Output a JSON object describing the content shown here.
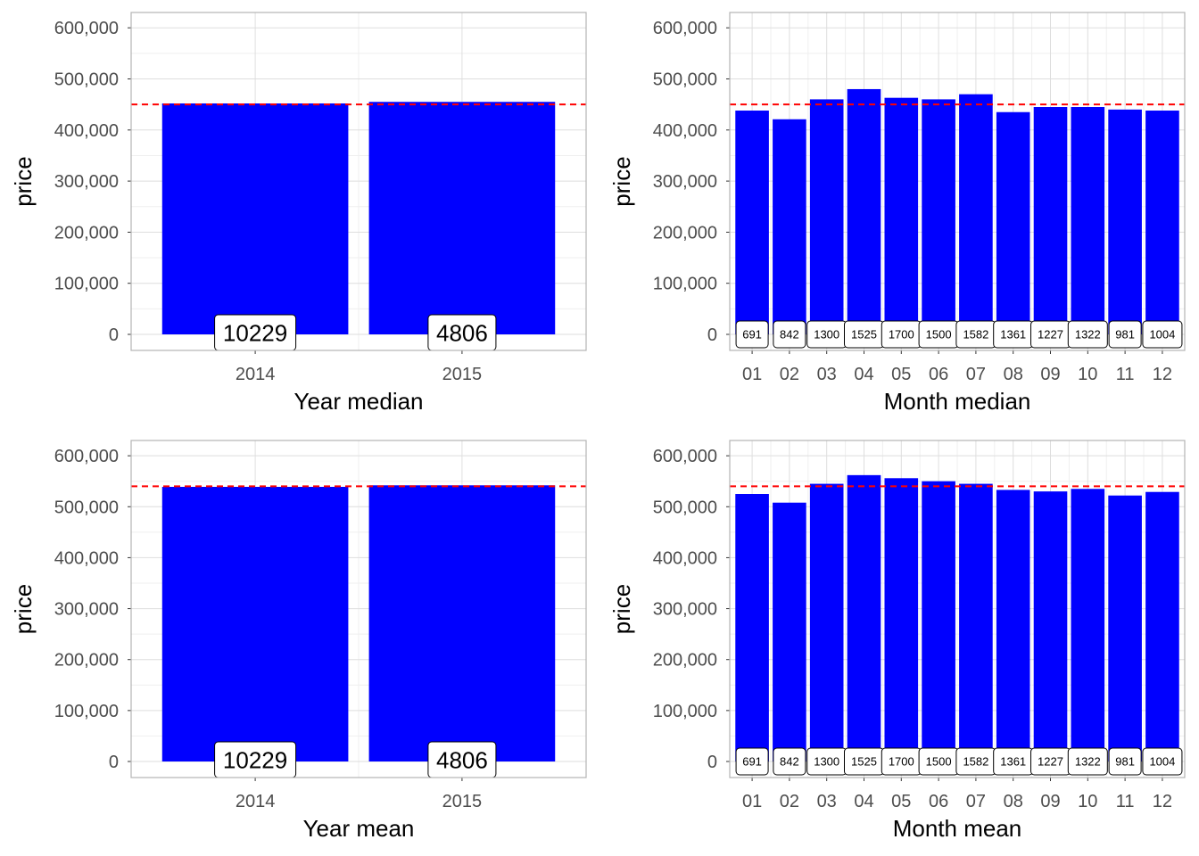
{
  "colors": {
    "bar": "#0000ff",
    "refline": "#ff0000",
    "grid_major": "#dedede",
    "grid_minor": "#efefef",
    "panel_border": "#b3b3b3",
    "tick_text": "#4d4d4d"
  },
  "chart_data": [
    {
      "type": "bar",
      "xlabel": "Year median",
      "ylabel": "price",
      "categories": [
        "2014",
        "2015"
      ],
      "values": [
        452000,
        455000
      ],
      "count_labels": [
        "10229",
        "4806"
      ],
      "reference_line": 450000,
      "ylim": [
        0,
        630000
      ],
      "yticks": [
        0,
        100000,
        200000,
        300000,
        400000,
        500000,
        600000
      ],
      "ytick_labels": [
        "0",
        "100,000",
        "200,000",
        "300,000",
        "400,000",
        "500,000",
        "600,000"
      ],
      "grid": true
    },
    {
      "type": "bar",
      "xlabel": "Month median",
      "ylabel": "price",
      "categories": [
        "01",
        "02",
        "03",
        "04",
        "05",
        "06",
        "07",
        "08",
        "09",
        "10",
        "11",
        "12"
      ],
      "values": [
        438000,
        421000,
        460000,
        480000,
        463000,
        460000,
        470000,
        435000,
        445000,
        445000,
        440000,
        438000
      ],
      "count_labels": [
        "691",
        "842",
        "1300",
        "1525",
        "1700",
        "1500",
        "1582",
        "1361",
        "1227",
        "1322",
        "981",
        "1004"
      ],
      "reference_line": 450000,
      "ylim": [
        0,
        630000
      ],
      "yticks": [
        0,
        100000,
        200000,
        300000,
        400000,
        500000,
        600000
      ],
      "ytick_labels": [
        "0",
        "100,000",
        "200,000",
        "300,000",
        "400,000",
        "500,000",
        "600,000"
      ],
      "grid": true
    },
    {
      "type": "bar",
      "xlabel": "Year mean",
      "ylabel": "price",
      "categories": [
        "2014",
        "2015"
      ],
      "values": [
        539000,
        542000
      ],
      "count_labels": [
        "10229",
        "4806"
      ],
      "reference_line": 540000,
      "ylim": [
        0,
        630000
      ],
      "yticks": [
        0,
        100000,
        200000,
        300000,
        400000,
        500000,
        600000
      ],
      "ytick_labels": [
        "0",
        "100,000",
        "200,000",
        "300,000",
        "400,000",
        "500,000",
        "600,000"
      ],
      "grid": true
    },
    {
      "type": "bar",
      "xlabel": "Month mean",
      "ylabel": "price",
      "categories": [
        "01",
        "02",
        "03",
        "04",
        "05",
        "06",
        "07",
        "08",
        "09",
        "10",
        "11",
        "12"
      ],
      "values": [
        525000,
        508000,
        545000,
        562000,
        556000,
        550000,
        545000,
        533000,
        530000,
        535000,
        522000,
        529000
      ],
      "count_labels": [
        "691",
        "842",
        "1300",
        "1525",
        "1700",
        "1500",
        "1582",
        "1361",
        "1227",
        "1322",
        "981",
        "1004"
      ],
      "reference_line": 540000,
      "ylim": [
        0,
        630000
      ],
      "yticks": [
        0,
        100000,
        200000,
        300000,
        400000,
        500000,
        600000
      ],
      "ytick_labels": [
        "0",
        "100,000",
        "200,000",
        "300,000",
        "400,000",
        "500,000",
        "600,000"
      ],
      "grid": true
    }
  ]
}
